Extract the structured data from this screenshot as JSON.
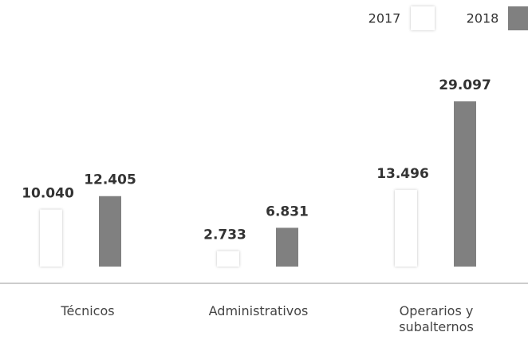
{
  "chart_data": {
    "type": "bar",
    "categories": [
      "Técnicos",
      "Administrativos",
      "Operarios y subalternos"
    ],
    "series": [
      {
        "name": "2017",
        "color": "#ffffff",
        "values": [
          10040,
          2733,
          13496
        ],
        "value_labels": [
          "10.040",
          "2.733",
          "13.496"
        ]
      },
      {
        "name": "2018",
        "color": "#808080",
        "values": [
          12405,
          6831,
          29097
        ],
        "value_labels": [
          "12.405",
          "6.831",
          "29.097"
        ]
      }
    ],
    "legend": "top-right"
  }
}
